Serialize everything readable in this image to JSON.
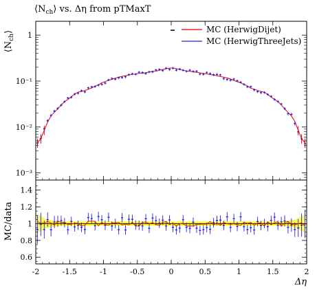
{
  "chart_data": {
    "type": "line",
    "title": "⟨N_ch⟩ vs. Δη from pTMaxT",
    "title_parts": {
      "main": "⟨N",
      "sub": "ch",
      "close": "⟩",
      "rest": " vs. Δη from pTMaxT"
    },
    "xlabel": "Δη",
    "ylabel_parts": {
      "main": "⟨N",
      "sub": "ch",
      "close": "⟩"
    },
    "ylabel_ratio": "MC/data",
    "xlim": [
      -2,
      2
    ],
    "ylim": [
      0.0007,
      2
    ],
    "y_scale": "log",
    "ratio_ylim": [
      0.52,
      1.52
    ],
    "x_tick_labels": [
      "-2",
      "-1.5",
      "-1",
      "-0.5",
      "0",
      "0.5",
      "1",
      "1.5",
      "2"
    ],
    "y_tick_labels": [
      "10⁻³",
      "10⁻²",
      "10⁻¹",
      "1"
    ],
    "ratio_tick_labels": [
      "0.6",
      "0.8",
      "1",
      "1.2",
      "1.4"
    ],
    "legend": {
      "placement": "top-right"
    },
    "colors": {
      "data": "#000000",
      "dijet": "#ee0000",
      "threejets": "#2222dd",
      "band": "#ffff00",
      "band_light": "#f7f76a"
    },
    "series": [
      {
        "name": "MC (HerwigDijet)",
        "role": "dijet"
      },
      {
        "name": "MC (HerwigThreeJets)",
        "role": "threejets"
      }
    ],
    "data_profile": {
      "x": [
        -1.95,
        -1.8,
        -1.6,
        -1.4,
        -1.2,
        -1.0,
        -0.8,
        -0.6,
        -0.4,
        -0.2,
        0.0,
        0.2,
        0.4,
        0.6,
        0.8,
        1.0,
        1.2,
        1.4,
        1.6,
        1.8,
        1.95
      ],
      "y": [
        0.0045,
        0.016,
        0.033,
        0.055,
        0.068,
        0.095,
        0.12,
        0.138,
        0.152,
        0.168,
        0.195,
        0.168,
        0.152,
        0.138,
        0.12,
        0.095,
        0.068,
        0.055,
        0.033,
        0.016,
        0.0045
      ]
    },
    "band_rel_error": {
      "x": [
        -2.0,
        -1.85,
        -1.6,
        1.6,
        1.85,
        2.0
      ],
      "y": [
        0.13,
        0.05,
        0.022,
        0.022,
        0.05,
        0.13
      ]
    },
    "ratio_scatter": {
      "dijet": 0.06,
      "threejets": 0.08
    },
    "bins": 80
  }
}
